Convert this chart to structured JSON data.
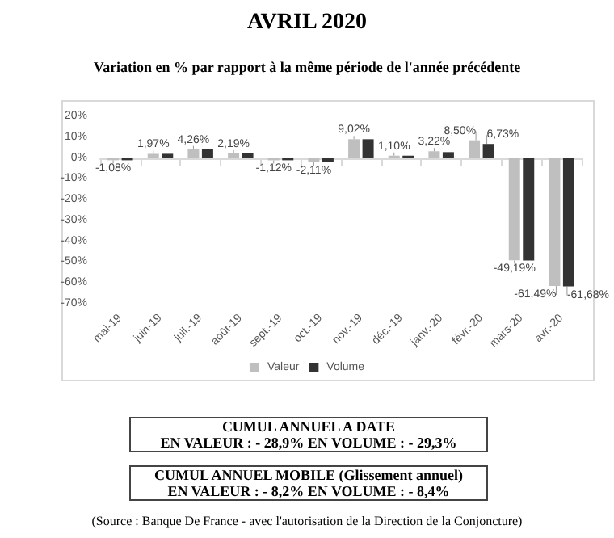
{
  "chart_data": {
    "type": "bar",
    "title": "AVRIL 2020",
    "subtitle": "Variation en % par rapport à la même période de l'année précédente",
    "categories": [
      "mai-19",
      "juin-19",
      "juil.-19",
      "août-19",
      "sept.-19",
      "oct.-19",
      "nov.-19",
      "déc.-19",
      "janv.-20",
      "févr.-20",
      "mars-20",
      "avr.-20"
    ],
    "series": [
      {
        "name": "Valeur",
        "color": "#bfbfbf",
        "values": [
          -1.08,
          1.97,
          4.26,
          2.19,
          -1.12,
          -2.11,
          9.02,
          1.1,
          3.22,
          8.5,
          -49.19,
          -61.49
        ],
        "value_labels": [
          "-1,08%",
          "1,97%",
          "4,26%",
          "2,19%",
          "-1,12%",
          "-2,11%",
          "9,02%",
          "1,10%",
          "3,22%",
          "8,50%",
          "-49,19%",
          "-61,49%"
        ]
      },
      {
        "name": "Volume",
        "color": "#333333",
        "values": [
          -1.1,
          2.0,
          4.3,
          2.2,
          -1.1,
          -2.1,
          9.0,
          1.1,
          2.8,
          6.73,
          -49.2,
          -61.68
        ],
        "value_labels": [
          null,
          null,
          null,
          null,
          null,
          null,
          null,
          null,
          null,
          "6,73%",
          null,
          "-61,68%"
        ]
      }
    ],
    "ylim": [
      -70,
      20
    ],
    "yticks": [
      {
        "value": -70,
        "label": "-70%"
      },
      {
        "value": -60,
        "label": "-60%"
      },
      {
        "value": -50,
        "label": "-50%"
      },
      {
        "value": -40,
        "label": "-40%"
      },
      {
        "value": -30,
        "label": "-30%"
      },
      {
        "value": -20,
        "label": "-20%"
      },
      {
        "value": -10,
        "label": "-10%"
      },
      {
        "value": 0,
        "label": "0%"
      },
      {
        "value": 10,
        "label": "10%"
      },
      {
        "value": 20,
        "label": "20%"
      }
    ],
    "legend": "bottom",
    "annotations": [
      "CUMUL ANNUEL A DATE\nEN VALEUR : - 28,9%   EN VOLUME : - 29,3%",
      "CUMUL ANNUEL MOBILE (Glissement annuel)\nEN VALEUR : - 8,2%    EN VOLUME : - 8,4%",
      "(Source : Banque De France - avec l'autorisation de la Direction de la Conjoncture)"
    ]
  }
}
